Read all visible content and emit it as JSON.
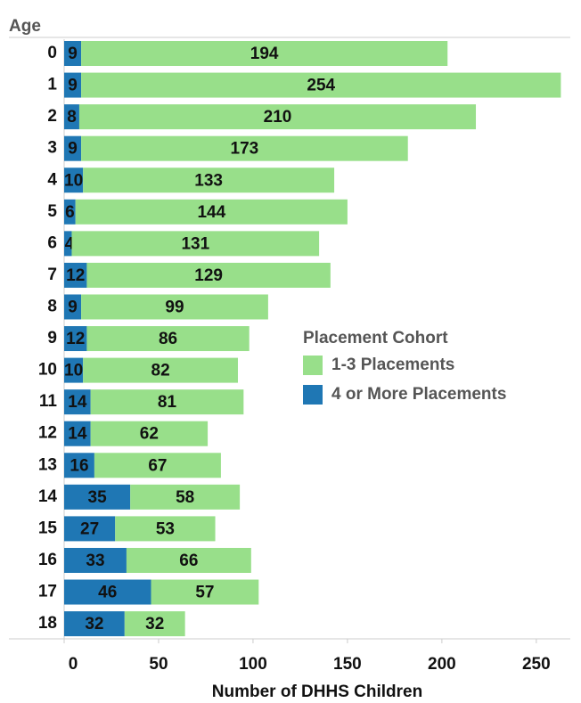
{
  "chart_data": {
    "type": "stacked_bar_horizontal",
    "y_label": "Age",
    "x_label": "Number of DHHS Children",
    "legend_title": "Placement Cohort",
    "categories": [
      "0",
      "1",
      "2",
      "3",
      "4",
      "5",
      "6",
      "7",
      "8",
      "9",
      "10",
      "11",
      "12",
      "13",
      "14",
      "15",
      "16",
      "17",
      "18"
    ],
    "series": [
      {
        "name": "1-3 Placements",
        "color": "#98df8a",
        "values": [
          194,
          254,
          210,
          173,
          133,
          144,
          131,
          129,
          99,
          86,
          82,
          81,
          62,
          67,
          58,
          53,
          66,
          57,
          32
        ]
      },
      {
        "name": "4 or More Placements",
        "color": "#1f77b4",
        "values": [
          9,
          9,
          8,
          9,
          10,
          6,
          4,
          12,
          9,
          12,
          10,
          14,
          14,
          16,
          35,
          27,
          33,
          46,
          32
        ]
      }
    ],
    "xlim": [
      0,
      268
    ],
    "xticks": [
      0,
      50,
      100,
      150,
      200,
      250
    ],
    "legend": "right"
  }
}
